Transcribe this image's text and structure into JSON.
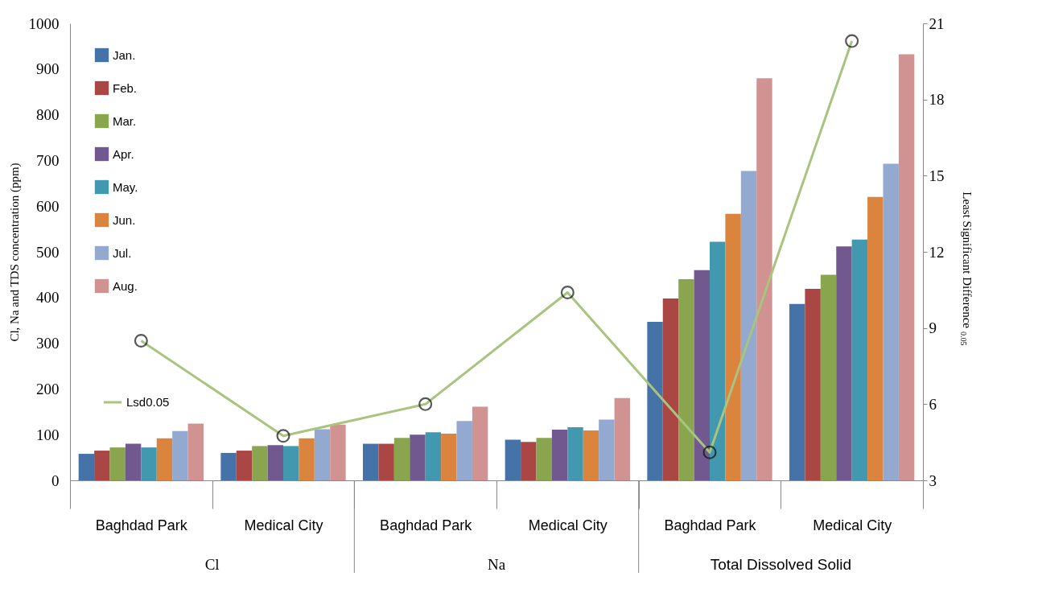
{
  "chart_data": {
    "type": "bar",
    "categories": [
      "Baghdad Park",
      "Medical City",
      "Baghdad Park",
      "Medical City",
      "Baghdad Park",
      "Medical City"
    ],
    "annotations": [
      "Cl",
      "Na",
      "Total Dissolved Solid"
    ],
    "ylabel": "Cl, Na and TDS concentration (ppm)",
    "y2label": "Least Significant Difference$_{0.05}$",
    "ylim": [
      0,
      1000
    ],
    "yticks": [
      0,
      100,
      200,
      300,
      400,
      500,
      600,
      700,
      800,
      900,
      1000
    ],
    "y2lim": [
      3,
      21
    ],
    "y2ticks": [
      3,
      6,
      9,
      12,
      15,
      18,
      21
    ],
    "grid": false,
    "legend": "top left",
    "series": [
      {
        "name": "Jan.",
        "color": "#4572a7",
        "values": [
          58,
          60,
          80,
          89,
          347,
          386
        ]
      },
      {
        "name": "Feb.",
        "color": "#aa4643",
        "values": [
          65,
          65,
          80,
          84,
          398,
          419
        ]
      },
      {
        "name": "Mar.",
        "color": "#89a54e",
        "values": [
          72,
          75,
          93,
          93,
          440,
          450
        ]
      },
      {
        "name": "Apr.",
        "color": "#71588f",
        "values": [
          80,
          77,
          100,
          111,
          460,
          512
        ]
      },
      {
        "name": "May.",
        "color": "#4198af",
        "values": [
          72,
          75,
          105,
          116,
          522,
          527
        ]
      },
      {
        "name": "Jun.",
        "color": "#db843d",
        "values": [
          92,
          92,
          102,
          109,
          583,
          620
        ]
      },
      {
        "name": "Jul.",
        "color": "#93a9cf",
        "values": [
          108,
          112,
          130,
          133,
          677,
          693
        ]
      },
      {
        "name": "Aug.",
        "color": "#d09392",
        "values": [
          124,
          122,
          161,
          180,
          880,
          932
        ]
      },
      {
        "name": "Lsd0.05",
        "type": "line",
        "axis": "y2",
        "marker": "circle",
        "color": "#a8c47e",
        "values": [
          8.5,
          4.75,
          6.0,
          10.4,
          4.1,
          20.3
        ]
      }
    ]
  }
}
